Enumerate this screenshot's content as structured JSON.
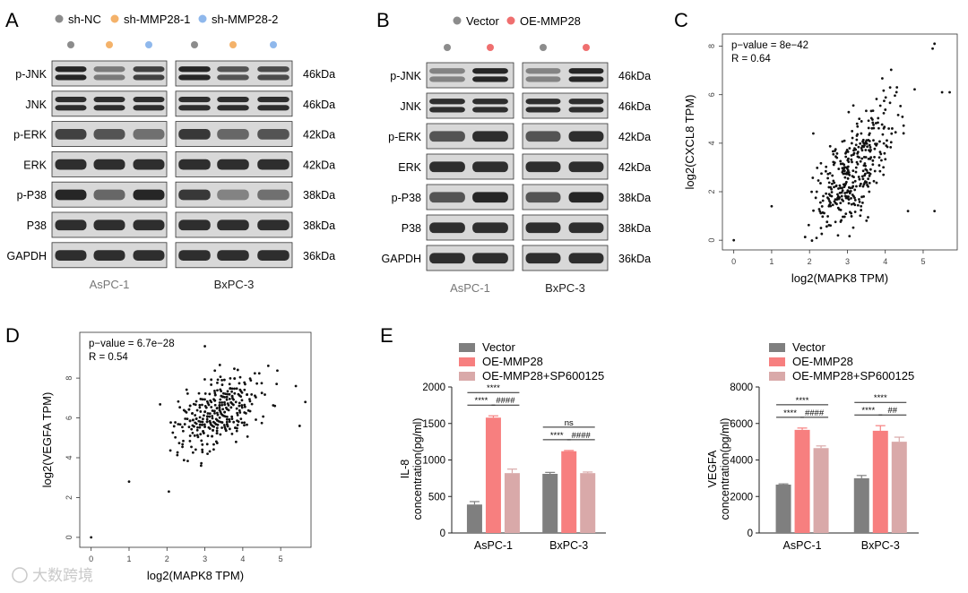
{
  "panels": {
    "A": {
      "letter": "A",
      "legend": [
        "sh-NC",
        "sh-MMP28-1",
        "sh-MMP28-2"
      ],
      "legend_colors": [
        "#8c8c8c",
        "#f4b26a",
        "#8fb8ec"
      ],
      "rows": [
        "p-JNK",
        "JNK",
        "p-ERK",
        "ERK",
        "p-P38",
        "P38",
        "GAPDH"
      ],
      "sizes": [
        "46kDa",
        "46kDa",
        "42kDa",
        "42kDa",
        "38kDa",
        "38kDa",
        "36kDa"
      ],
      "cells": [
        "AsPC-1",
        "BxPC-3"
      ]
    },
    "B": {
      "letter": "B",
      "legend": [
        "Vector",
        "OE-MMP28"
      ],
      "legend_colors": [
        "#8c8c8c",
        "#ef6f6f"
      ],
      "rows": [
        "p-JNK",
        "JNK",
        "p-ERK",
        "ERK",
        "p-P38",
        "P38",
        "GAPDH"
      ],
      "sizes": [
        "46kDa",
        "46kDa",
        "42kDa",
        "42kDa",
        "38kDa",
        "38kDa",
        "36kDa"
      ],
      "cells": [
        "AsPC-1",
        "BxPC-3"
      ]
    },
    "C": {
      "letter": "C"
    },
    "D": {
      "letter": "D"
    },
    "E": {
      "letter": "E"
    }
  },
  "watermark": "大数跨境",
  "chart_data": [
    {
      "id": "C",
      "type": "scatter",
      "xlabel": "log2(MAPK8 TPM)",
      "ylabel": "log2(CXCL8 TPM)",
      "xlim": [
        -0.3,
        5.9
      ],
      "ylim": [
        -0.4,
        8.5
      ],
      "xticks": [
        0,
        1,
        2,
        3,
        4,
        5
      ],
      "yticks": [
        0,
        2,
        4,
        6,
        8
      ],
      "annotations": [
        "p−value = 8e−42",
        "R = 0.64"
      ],
      "points": [
        [
          0,
          0
        ],
        [
          1,
          1.4
        ],
        [
          5.3,
          8.1
        ],
        [
          5.5,
          6.1
        ],
        [
          5.7,
          6.1
        ],
        [
          4.6,
          1.2
        ],
        [
          5.3,
          1.2
        ],
        [
          2.1,
          4.4
        ],
        [
          5.25,
          7.9
        ]
      ],
      "cloud": {
        "n": 360,
        "cx": 3.2,
        "sx": 0.55,
        "slope": 1.7,
        "base": -2.4,
        "noise": 1.0,
        "seed": 7
      }
    },
    {
      "id": "D",
      "type": "scatter",
      "xlabel": "log2(MAPK8 TPM)",
      "ylabel": "log2(VEGFA TPM)",
      "xlim": [
        -0.3,
        5.8
      ],
      "ylim": [
        -0.5,
        10.3
      ],
      "xticks": [
        0,
        1,
        2,
        3,
        4,
        5
      ],
      "yticks": [
        0,
        2,
        4,
        6,
        8
      ],
      "annotations": [
        "p−value = 6.7e−28",
        "R = 0.54"
      ],
      "points": [
        [
          0,
          0
        ],
        [
          1,
          2.8
        ],
        [
          2.05,
          2.3
        ],
        [
          3,
          9.6
        ],
        [
          2.9,
          3.6
        ],
        [
          5.65,
          6.8
        ],
        [
          5.5,
          5.6
        ],
        [
          5.4,
          7.6
        ]
      ],
      "cloud": {
        "n": 340,
        "cx": 3.3,
        "sx": 0.6,
        "slope": 0.8,
        "base": 3.6,
        "noise": 0.8,
        "seed": 11
      }
    },
    {
      "id": "E1",
      "type": "bar",
      "categories": [
        "AsPC-1",
        "BxPC-3"
      ],
      "series": [
        {
          "name": "Vector",
          "color": "#7f7f7f",
          "values": [
            390,
            810
          ],
          "errors": [
            40,
            20
          ]
        },
        {
          "name": "OE-MMP28",
          "color": "#f77f7f",
          "values": [
            1580,
            1120
          ],
          "errors": [
            25,
            10
          ]
        },
        {
          "name": "OE-MMP28+SP600125",
          "color": "#d9a9a9",
          "values": [
            820,
            820
          ],
          "errors": [
            55,
            15
          ]
        }
      ],
      "ylabel": "IL-8",
      "ylabel2": "concentration(pg/ml)",
      "ylim": [
        0,
        2000
      ],
      "yticks": [
        0,
        500,
        1000,
        1500,
        2000
      ],
      "sig": [
        {
          "cat": 0,
          "from": 0,
          "to": 2,
          "label": "****",
          "level": 2
        },
        {
          "cat": 0,
          "from": 0,
          "to": 1,
          "label": "****",
          "level": 1
        },
        {
          "cat": 0,
          "from": 1,
          "to": 2,
          "label": "####",
          "level": 1
        },
        {
          "cat": 1,
          "from": 0,
          "to": 2,
          "label": "ns",
          "level": 2
        },
        {
          "cat": 1,
          "from": 0,
          "to": 1,
          "label": "****",
          "level": 1
        },
        {
          "cat": 1,
          "from": 1,
          "to": 2,
          "label": "####",
          "level": 1
        }
      ]
    },
    {
      "id": "E2",
      "type": "bar",
      "categories": [
        "AsPC-1",
        "BxPC-3"
      ],
      "series": [
        {
          "name": "Vector",
          "color": "#7f7f7f",
          "values": [
            2650,
            3000
          ],
          "errors": [
            40,
            150
          ]
        },
        {
          "name": "OE-MMP28",
          "color": "#f77f7f",
          "values": [
            5650,
            5600
          ],
          "errors": [
            100,
            280
          ]
        },
        {
          "name": "OE-MMP28+SP600125",
          "color": "#d9a9a9",
          "values": [
            4650,
            5000
          ],
          "errors": [
            120,
            250
          ]
        }
      ],
      "ylabel": "VEGFA",
      "ylabel2": "concentration(pg/ml)",
      "ylim": [
        0,
        8000
      ],
      "yticks": [
        0,
        2000,
        4000,
        6000,
        8000
      ],
      "sig": [
        {
          "cat": 0,
          "from": 0,
          "to": 2,
          "label": "****",
          "level": 2
        },
        {
          "cat": 0,
          "from": 0,
          "to": 1,
          "label": "****",
          "level": 1
        },
        {
          "cat": 0,
          "from": 1,
          "to": 2,
          "label": "####",
          "level": 1
        },
        {
          "cat": 1,
          "from": 0,
          "to": 2,
          "label": "****",
          "level": 2
        },
        {
          "cat": 1,
          "from": 0,
          "to": 1,
          "label": "****",
          "level": 1
        },
        {
          "cat": 1,
          "from": 1,
          "to": 2,
          "label": "##",
          "level": 1
        }
      ]
    }
  ]
}
